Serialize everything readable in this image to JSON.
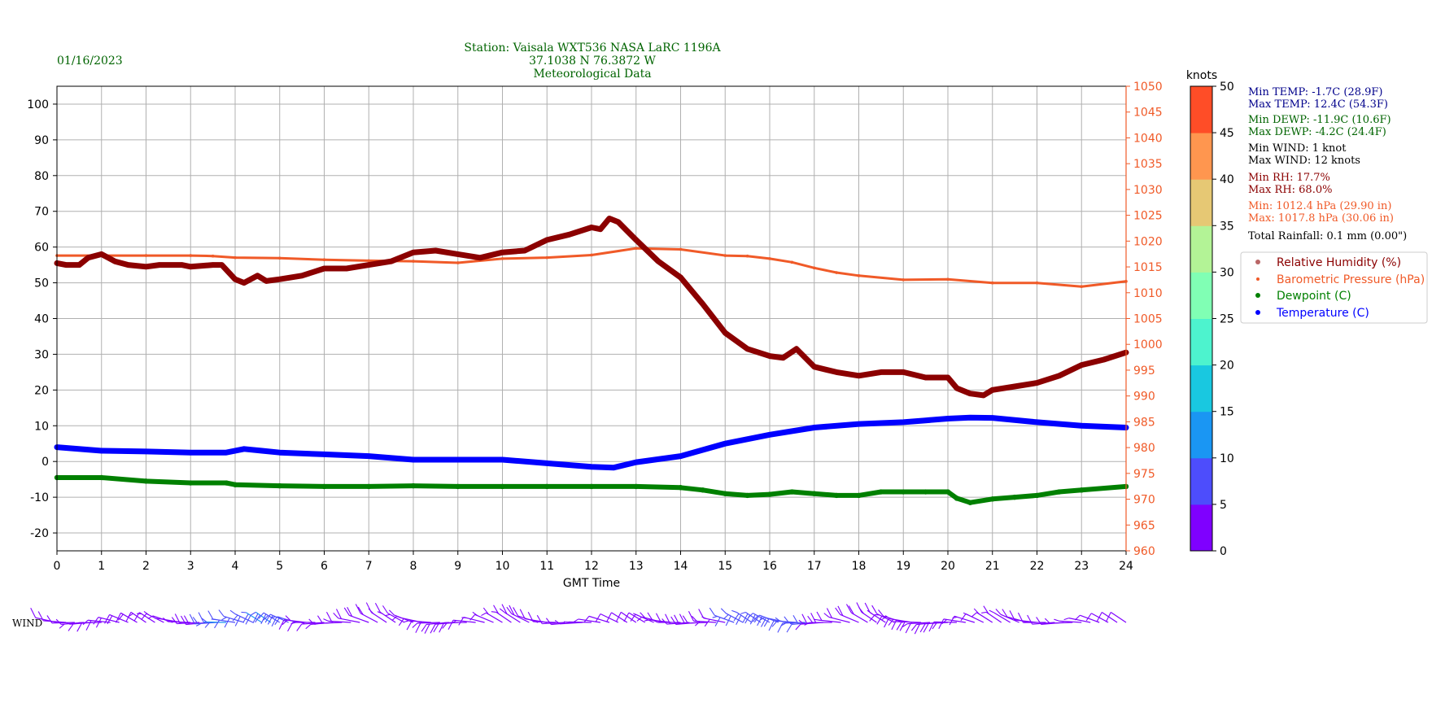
{
  "date": "01/16/2023",
  "title_lines": [
    "Station:  Vaisala WXT536  NASA LaRC 1196A",
    "37.1038 N 76.3872 W",
    "Meteorological Data"
  ],
  "stats": [
    {
      "text": "Min TEMP: -1.7C (28.9F)",
      "color": "#00008b"
    },
    {
      "text": "Max TEMP: 12.4C (54.3F)",
      "color": "#00008b"
    },
    {
      "text": "Min DEWP: -11.9C (10.6F)",
      "color": "#006400"
    },
    {
      "text": "Max DEWP: -4.2C (24.4F)",
      "color": "#006400"
    },
    {
      "text": "Min WIND: 1 knot",
      "color": "#000000"
    },
    {
      "text": "Max WIND: 12 knots",
      "color": "#000000"
    },
    {
      "text": "Min RH: 17.7%",
      "color": "#8b0000"
    },
    {
      "text": "Max RH: 68.0%",
      "color": "#8b0000"
    },
    {
      "text": "Min: 1012.4 hPa (29.90 in)",
      "color": "#f05a28"
    },
    {
      "text": "Max: 1017.8 hPa (30.06 in)",
      "color": "#f05a28"
    },
    {
      "text": "Total Rainfall: 0.1 mm (0.00\")",
      "color": "#000000"
    }
  ],
  "colorbar": {
    "title": "knots",
    "ticks": [
      0,
      5,
      10,
      15,
      20,
      25,
      30,
      35,
      40,
      45,
      50
    ],
    "colors": [
      "#7f00ff",
      "#4d4dfc",
      "#1a96f3",
      "#19c8e0",
      "#4df3ce",
      "#80ffb4",
      "#b3f396",
      "#e6c874",
      "#ff964f",
      "#ff4d27",
      "#ff0000"
    ]
  },
  "wind_label": "WIND",
  "chart_data": {
    "type": "scatter",
    "xlabel": "GMT Time",
    "x_ticks": [
      0,
      1,
      2,
      3,
      4,
      5,
      6,
      7,
      8,
      9,
      10,
      11,
      12,
      13,
      14,
      15,
      16,
      17,
      18,
      19,
      20,
      21,
      22,
      23,
      24
    ],
    "xlim": [
      0,
      24
    ],
    "ylim_left": [
      -25,
      105
    ],
    "left_ticks": [
      -20,
      -10,
      0,
      10,
      20,
      30,
      40,
      50,
      60,
      70,
      80,
      90,
      100
    ],
    "ylim_right": [
      960,
      1050
    ],
    "right_ticks": [
      960,
      965,
      970,
      975,
      980,
      985,
      990,
      995,
      1000,
      1005,
      1010,
      1015,
      1020,
      1025,
      1030,
      1035,
      1040,
      1045,
      1050
    ],
    "grid": true,
    "legend": {
      "placement": "right",
      "entries": [
        {
          "label": "Relative Humidity (%)",
          "color": "#8b0000"
        },
        {
          "label": "Barometric Pressure (hPa)",
          "color": "#f05a28"
        },
        {
          "label": "Dewpoint (C)",
          "color": "#008000"
        },
        {
          "label": "Temperature (C)",
          "color": "#0000ff"
        }
      ]
    },
    "series": [
      {
        "name": "Relative Humidity (%)",
        "axis": "left",
        "color": "#8b0000",
        "x": [
          0,
          0.2,
          0.5,
          0.7,
          1.0,
          1.3,
          1.6,
          2.0,
          2.3,
          2.8,
          3.0,
          3.5,
          3.7,
          4.0,
          4.2,
          4.5,
          4.7,
          5.0,
          5.5,
          6.0,
          6.5,
          7.0,
          7.5,
          8.0,
          8.5,
          9.0,
          9.5,
          10.0,
          10.5,
          11.0,
          11.5,
          12.0,
          12.2,
          12.4,
          12.6,
          12.8,
          13.0,
          13.5,
          14.0,
          14.5,
          15.0,
          15.5,
          16.0,
          16.3,
          16.6,
          17.0,
          17.5,
          18.0,
          18.5,
          19.0,
          19.5,
          20.0,
          20.2,
          20.5,
          20.8,
          21.0,
          21.5,
          22.0,
          22.5,
          23.0,
          23.5,
          24.0
        ],
        "y": [
          55.5,
          55,
          55,
          57,
          58,
          56,
          55,
          54.5,
          55,
          55,
          54.5,
          55,
          55,
          51,
          50,
          52,
          50.5,
          51,
          52,
          54,
          54,
          55,
          56,
          58.5,
          59,
          58,
          57,
          58.5,
          59,
          62,
          63.5,
          65.5,
          65,
          68,
          67,
          64.5,
          62,
          56,
          51.5,
          44,
          36,
          31.5,
          29.5,
          29,
          31.5,
          26.5,
          25,
          24,
          25,
          25,
          23.5,
          23.5,
          20.5,
          19,
          18.5,
          20,
          21,
          22,
          24,
          27,
          28.5,
          30.5
        ]
      },
      {
        "name": "Barometric Pressure (hPa)",
        "axis": "right",
        "color": "#f05a28",
        "x": [
          0,
          1,
          2,
          3,
          3.5,
          4,
          5,
          6,
          7,
          8,
          9,
          10,
          11,
          12,
          13,
          14,
          15,
          15.5,
          16,
          16.5,
          17,
          17.5,
          18,
          19,
          20,
          21,
          22,
          23,
          24
        ],
        "y": [
          1017.2,
          1017.2,
          1017.2,
          1017.2,
          1017.1,
          1016.8,
          1016.7,
          1016.4,
          1016.2,
          1016.1,
          1015.8,
          1016.6,
          1016.8,
          1017.3,
          1018.6,
          1018.4,
          1017.2,
          1017.1,
          1016.6,
          1015.9,
          1014.8,
          1013.9,
          1013.3,
          1012.5,
          1012.6,
          1011.9,
          1011.9,
          1011.2,
          1012.2
        ]
      },
      {
        "name": "Dewpoint (C)",
        "axis": "left",
        "color": "#008000",
        "x": [
          0,
          1,
          2,
          3,
          3.8,
          4,
          5,
          6,
          7,
          8,
          9,
          10,
          11,
          12,
          13,
          14,
          14.5,
          15,
          15.5,
          16,
          16.5,
          17,
          17.5,
          18,
          18.5,
          19,
          19.5,
          20,
          20.2,
          20.5,
          21,
          21.5,
          22,
          22.5,
          23,
          24
        ],
        "y": [
          -4.5,
          -4.5,
          -5.5,
          -6,
          -6,
          -6.5,
          -6.8,
          -7,
          -7,
          -6.8,
          -7,
          -7,
          -7,
          -7,
          -7,
          -7.3,
          -8,
          -9,
          -9.5,
          -9.2,
          -8.5,
          -9,
          -9.5,
          -9.5,
          -8.5,
          -8.5,
          -8.5,
          -8.5,
          -10.3,
          -11.5,
          -10.5,
          -10,
          -9.5,
          -8.5,
          -8,
          -7
        ]
      },
      {
        "name": "Temperature (C)",
        "axis": "left",
        "color": "#0000ff",
        "x": [
          0,
          1,
          2,
          3,
          3.8,
          4.2,
          4.6,
          5,
          6,
          7,
          8,
          9,
          10,
          11,
          12,
          12.5,
          13,
          14,
          15,
          16,
          17,
          18,
          19,
          19.5,
          20,
          20.5,
          21,
          22,
          23,
          24
        ],
        "y": [
          4,
          3,
          2.8,
          2.5,
          2.5,
          3.5,
          3,
          2.5,
          2,
          1.5,
          0.5,
          0.5,
          0.5,
          -0.5,
          -1.5,
          -1.7,
          -0.2,
          1.5,
          5,
          7.5,
          9.5,
          10.5,
          11,
          11.5,
          12,
          12.3,
          12.2,
          11,
          10,
          9.5
        ]
      },
      {
        "name": "WIND",
        "axis": "wind",
        "color": "",
        "x": [
          0,
          1,
          2,
          3,
          3.5,
          4,
          5,
          6,
          7,
          8,
          9,
          10,
          11,
          12,
          13,
          14,
          15,
          15.5,
          16,
          16.5,
          17,
          18,
          19,
          20,
          20.5,
          21,
          21.5,
          22,
          23,
          24
        ],
        "y": [
          4,
          5,
          5,
          4,
          8,
          10,
          9,
          7,
          6,
          6,
          7,
          6,
          4,
          3,
          4,
          6,
          8,
          9,
          8,
          9,
          8,
          7,
          8,
          7,
          6,
          5,
          4,
          3,
          3,
          2
        ]
      }
    ]
  }
}
